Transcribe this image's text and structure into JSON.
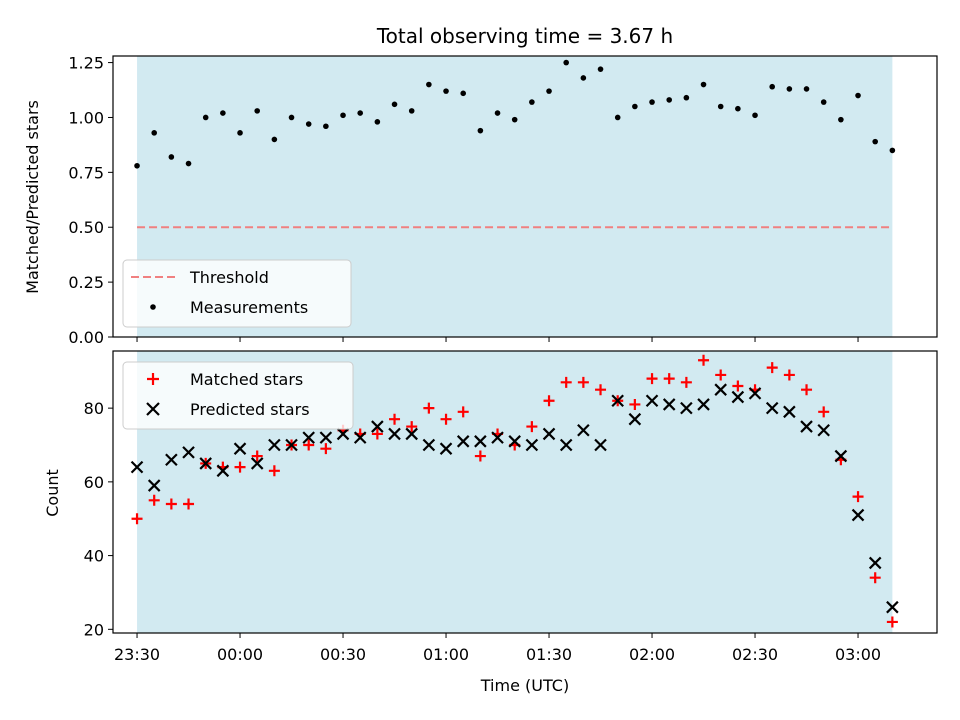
{
  "colors": {
    "shading": "#add8e6",
    "threshold": "#f08080",
    "matched": "#ff0000",
    "predicted": "#000000",
    "measurement": "#000000"
  },
  "chart_data": [
    {
      "type": "scatter",
      "title": "Total observing time = 3.67 h",
      "xlabel": "",
      "ylabel": "Matched/Predicted stars",
      "xlim": [
        "23:23",
        "03:23"
      ],
      "ylim": [
        0,
        1.28
      ],
      "y_ticks": [
        0.0,
        0.25,
        0.5,
        0.75,
        1.0,
        1.25
      ],
      "y_tick_labels": [
        "0.00",
        "0.25",
        "0.50",
        "0.75",
        "1.00",
        "1.25"
      ],
      "shaded_span": [
        "23:30",
        "03:10"
      ],
      "threshold": {
        "name": "Threshold",
        "value": 0.5,
        "style": "dashed"
      },
      "legend": [
        "Threshold",
        "Measurements"
      ],
      "legend_position": "lower-left",
      "series": [
        {
          "name": "Measurements",
          "x": [
            "23:30",
            "23:35",
            "23:40",
            "23:45",
            "23:50",
            "23:55",
            "00:00",
            "00:05",
            "00:10",
            "00:15",
            "00:20",
            "00:25",
            "00:30",
            "00:35",
            "00:40",
            "00:45",
            "00:50",
            "00:55",
            "01:00",
            "01:05",
            "01:10",
            "01:15",
            "01:20",
            "01:25",
            "01:30",
            "01:35",
            "01:40",
            "01:45",
            "01:50",
            "01:55",
            "02:00",
            "02:05",
            "02:10",
            "02:15",
            "02:20",
            "02:25",
            "02:30",
            "02:35",
            "02:40",
            "02:45",
            "02:50",
            "02:55",
            "03:00",
            "03:05",
            "03:10"
          ],
          "y": [
            0.78,
            0.93,
            0.82,
            0.79,
            1.0,
            1.02,
            0.93,
            1.03,
            0.9,
            1.0,
            0.97,
            0.96,
            1.01,
            1.02,
            0.98,
            1.06,
            1.03,
            1.15,
            1.12,
            1.11,
            0.94,
            1.02,
            0.99,
            1.07,
            1.12,
            1.25,
            1.18,
            1.22,
            1.0,
            1.05,
            1.07,
            1.08,
            1.09,
            1.15,
            1.05,
            1.04,
            1.01,
            1.14,
            1.13,
            1.13,
            1.07,
            0.99,
            1.1,
            0.89,
            0.85
          ]
        }
      ]
    },
    {
      "type": "scatter",
      "title": "",
      "xlabel": "Time (UTC)",
      "ylabel": "Count",
      "xlim": [
        "23:23",
        "03:23"
      ],
      "ylim": [
        19,
        95.5
      ],
      "y_ticks": [
        20,
        40,
        60,
        80
      ],
      "y_tick_labels": [
        "20",
        "40",
        "60",
        "80"
      ],
      "x_ticks": [
        "23:30",
        "00:00",
        "00:30",
        "01:00",
        "01:30",
        "02:00",
        "02:30",
        "03:00"
      ],
      "shaded_span": [
        "23:30",
        "03:10"
      ],
      "legend": [
        "Matched stars",
        "Predicted stars"
      ],
      "legend_position": "upper-left",
      "series": [
        {
          "name": "Matched stars",
          "marker": "+",
          "x": [
            "23:30",
            "23:35",
            "23:40",
            "23:45",
            "23:50",
            "23:55",
            "00:00",
            "00:05",
            "00:10",
            "00:15",
            "00:20",
            "00:25",
            "00:30",
            "00:35",
            "00:40",
            "00:45",
            "00:50",
            "00:55",
            "01:00",
            "01:05",
            "01:10",
            "01:15",
            "01:20",
            "01:25",
            "01:30",
            "01:35",
            "01:40",
            "01:45",
            "01:50",
            "01:55",
            "02:00",
            "02:05",
            "02:10",
            "02:15",
            "02:20",
            "02:25",
            "02:30",
            "02:35",
            "02:40",
            "02:45",
            "02:50",
            "02:55",
            "03:00",
            "03:05",
            "03:10"
          ],
          "y": [
            50,
            55,
            54,
            54,
            65,
            64,
            64,
            67,
            63,
            70,
            70,
            69,
            74,
            73,
            73,
            77,
            75,
            80,
            77,
            79,
            67,
            73,
            70,
            75,
            82,
            87,
            87,
            85,
            82,
            81,
            88,
            88,
            87,
            93,
            89,
            86,
            85,
            91,
            89,
            85,
            79,
            66,
            56,
            34,
            22
          ]
        },
        {
          "name": "Predicted stars",
          "marker": "x",
          "x": [
            "23:30",
            "23:35",
            "23:40",
            "23:45",
            "23:50",
            "23:55",
            "00:00",
            "00:05",
            "00:10",
            "00:15",
            "00:20",
            "00:25",
            "00:30",
            "00:35",
            "00:40",
            "00:45",
            "00:50",
            "00:55",
            "01:00",
            "01:05",
            "01:10",
            "01:15",
            "01:20",
            "01:25",
            "01:30",
            "01:35",
            "01:40",
            "01:45",
            "01:50",
            "01:55",
            "02:00",
            "02:05",
            "02:10",
            "02:15",
            "02:20",
            "02:25",
            "02:30",
            "02:35",
            "02:40",
            "02:45",
            "02:50",
            "02:55",
            "03:00",
            "03:05",
            "03:10"
          ],
          "y": [
            64,
            59,
            66,
            68,
            65,
            63,
            69,
            65,
            70,
            70,
            72,
            72,
            73,
            72,
            75,
            73,
            73,
            70,
            69,
            71,
            71,
            72,
            71,
            70,
            73,
            70,
            74,
            70,
            82,
            77,
            82,
            81,
            80,
            81,
            85,
            83,
            84,
            80,
            79,
            75,
            74,
            67,
            51,
            38,
            26
          ]
        }
      ]
    }
  ]
}
